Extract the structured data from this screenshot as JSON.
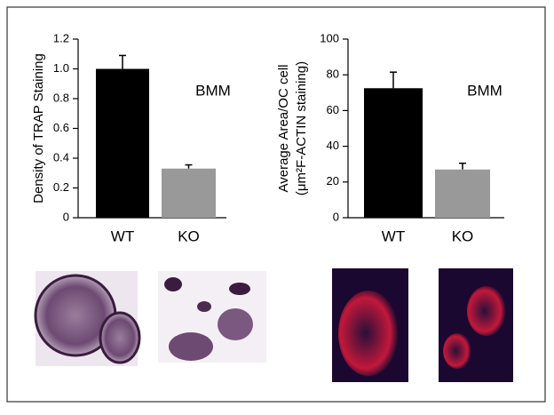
{
  "chart_data": [
    {
      "type": "bar",
      "ylabel": [
        "Density of TRAP Staining"
      ],
      "annotation": "BMM",
      "categories": [
        "WT",
        "KO"
      ],
      "values": [
        1.0,
        0.33
      ],
      "errors": [
        0.09,
        0.025
      ],
      "colors": [
        "#000000",
        "#999999"
      ],
      "ylim": [
        0,
        1.2
      ],
      "yticks": [
        0,
        0.2,
        0.4,
        0.6,
        0.8,
        {
          "value": 1,
          "label": "1.0"
        },
        1.2
      ]
    },
    {
      "type": "bar",
      "ylabel": [
        "Average Area/OC cell",
        "(μm²F-ACTIN staining)"
      ],
      "annotation": "BMM",
      "categories": [
        "WT",
        "KO"
      ],
      "values": [
        72.5,
        27
      ],
      "errors": [
        9,
        3.5
      ],
      "colors": [
        "#000000",
        "#999999"
      ],
      "ylim": [
        0,
        100
      ],
      "yticks": [
        0,
        20,
        40,
        60,
        80,
        100
      ]
    }
  ]
}
